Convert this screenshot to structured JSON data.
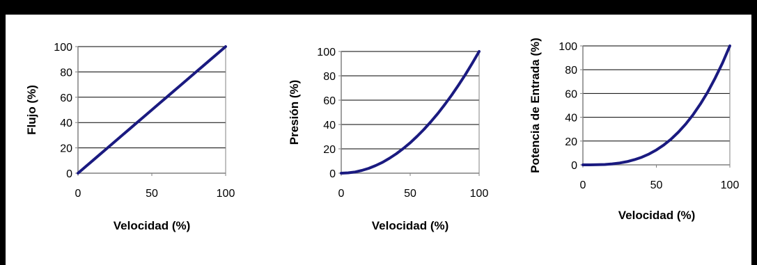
{
  "colors": {
    "line": "#1a1a80",
    "axis": "#808080",
    "grid": "#000000",
    "background": "#ffffff",
    "frame": "#000000"
  },
  "chart_data": [
    {
      "type": "line",
      "title": "",
      "xlabel": "Velocidad (%)",
      "ylabel": "Flujo (%)",
      "xlim": [
        0,
        100
      ],
      "ylim": [
        0,
        100
      ],
      "xticks": [
        "0",
        "50",
        "100"
      ],
      "yticks": [
        "0",
        "20",
        "40",
        "60",
        "80",
        "100"
      ],
      "grid": "horizontal",
      "series": [
        {
          "x": [
            0,
            5,
            10,
            15,
            20,
            25,
            30,
            35,
            40,
            45,
            50,
            55,
            60,
            65,
            70,
            75,
            80,
            85,
            90,
            95,
            100
          ],
          "y": [
            0,
            5,
            10,
            15,
            20,
            25,
            30,
            35,
            40,
            45,
            50,
            55,
            60,
            65,
            70,
            75,
            80,
            85,
            90,
            95,
            100
          ]
        }
      ]
    },
    {
      "type": "line",
      "title": "",
      "xlabel": "Velocidad (%)",
      "ylabel": "Presión (%)",
      "xlim": [
        0,
        100
      ],
      "ylim": [
        0,
        100
      ],
      "xticks": [
        "0",
        "50",
        "100"
      ],
      "yticks": [
        "0",
        "20",
        "40",
        "60",
        "80",
        "100"
      ],
      "grid": "horizontal",
      "series": [
        {
          "x": [
            0,
            5,
            10,
            15,
            20,
            25,
            30,
            35,
            40,
            45,
            50,
            55,
            60,
            65,
            70,
            75,
            80,
            85,
            90,
            95,
            100
          ],
          "y": [
            0,
            0.3,
            1,
            2.3,
            4,
            6.3,
            9,
            12.3,
            16,
            20.3,
            25,
            30.3,
            36,
            42.3,
            49,
            56.3,
            64,
            72.3,
            81,
            90.3,
            100
          ]
        }
      ]
    },
    {
      "type": "line",
      "title": "",
      "xlabel": "Velocidad (%)",
      "ylabel": "Potencia de Entrada (%)",
      "xlim": [
        0,
        100
      ],
      "ylim": [
        0,
        100
      ],
      "xticks": [
        "0",
        "50",
        "100"
      ],
      "yticks": [
        "0",
        "20",
        "40",
        "60",
        "80",
        "100"
      ],
      "grid": "horizontal",
      "series": [
        {
          "x": [
            0,
            5,
            10,
            15,
            20,
            25,
            30,
            35,
            40,
            45,
            50,
            55,
            60,
            65,
            70,
            75,
            80,
            85,
            90,
            95,
            100
          ],
          "y": [
            0,
            0,
            0.1,
            0.3,
            0.8,
            1.6,
            2.7,
            4.3,
            6.4,
            9.1,
            12.5,
            16.6,
            21.6,
            27.5,
            34.3,
            42.2,
            51.2,
            61.4,
            72.9,
            85.7,
            100
          ]
        }
      ]
    }
  ]
}
